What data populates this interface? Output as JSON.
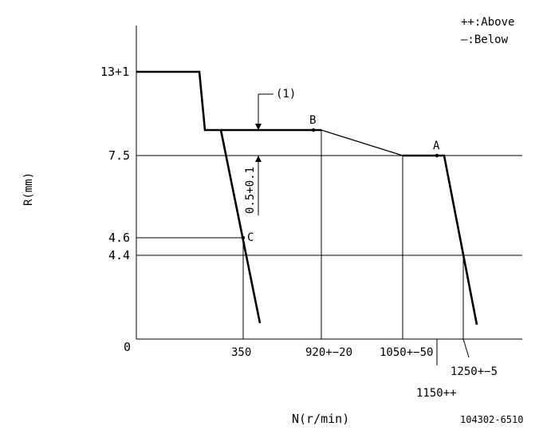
{
  "legend": {
    "above": "++:Above",
    "below": "—:Below"
  },
  "axes": {
    "ylabel": "R(mm)",
    "xlabel": "N(r/min)",
    "origin": "0"
  },
  "y_ticks": [
    "13+1",
    "7.5",
    "4.6",
    "4.4"
  ],
  "x_ticks": [
    "350",
    "920+−20",
    "1050+−50",
    "1250+−5",
    "1150++"
  ],
  "points": [
    "A",
    "B",
    "C"
  ],
  "annotations": {
    "marker": "(1)",
    "dimension": "0.5+0.1"
  },
  "part_number": "104302-6510",
  "chart_data": {
    "type": "line",
    "title": "",
    "xlabel": "N(r/min)",
    "ylabel": "R(mm)",
    "series": [
      {
        "name": "",
        "x": [
          0,
          230,
          255,
          350,
          920,
          1050,
          1150,
          1160,
          1250
        ],
        "y": [
          13,
          13,
          9,
          9,
          9,
          7.5,
          7.5,
          7.5,
          4.4
        ]
      }
    ],
    "labeled_points": [
      {
        "label": "A",
        "x": 1150,
        "y": 7.5
      },
      {
        "label": "B",
        "x": 920,
        "y": 9
      },
      {
        "label": "C",
        "x": 350,
        "y": 4.6
      }
    ],
    "grid": false
  }
}
